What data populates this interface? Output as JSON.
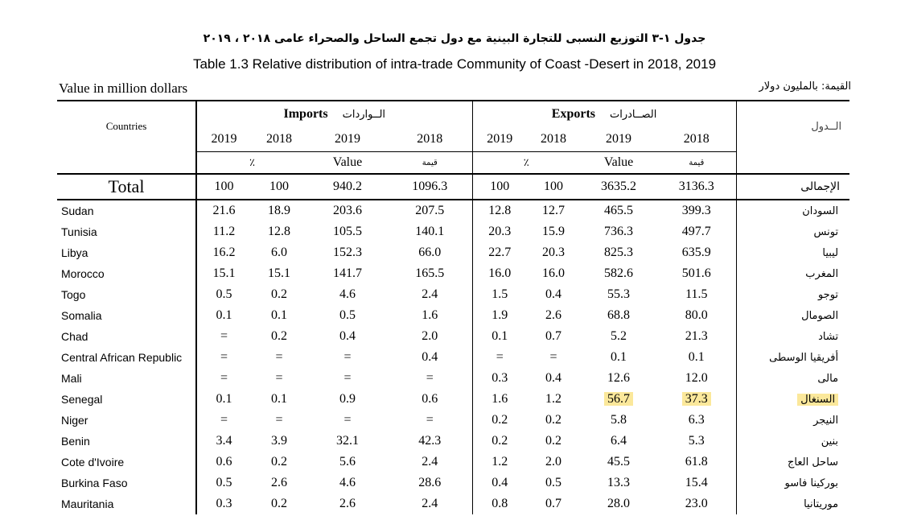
{
  "title_ar": "جدول ١-٣ التوزيع النسبى للتجارة البينية مع دول تجمع الساحل والصحراء عامى ٢٠١٨ ، ٢٠١٩",
  "title_en": "Table 1.3 Relative distribution of intra-trade Community of Coast -Desert in 2018, 2019",
  "unit_en": "Value in million dollars",
  "unit_ar": "القيمة: بالمليون دولار",
  "header": {
    "countries_label": "Countries",
    "countries_label_ar": "الــدول",
    "imports_en": "Imports",
    "imports_ar": "الــواردات",
    "exports_en": "Exports",
    "exports_ar": "الصــادرات",
    "years": [
      "2019",
      "2018",
      "2019",
      "2018"
    ],
    "percent_label": "٪",
    "value_label": "Value",
    "value_label_ar": "قيمة"
  },
  "total": {
    "label_en": "Total",
    "label_ar": "الإجمالى",
    "values": [
      "100",
      "100",
      "940.2",
      "1096.3",
      "100",
      "100",
      "3635.2",
      "3136.3"
    ]
  },
  "rows": [
    {
      "en": "Sudan",
      "ar": "السودان",
      "v": [
        "21.6",
        "18.9",
        "203.6",
        "207.5",
        "12.8",
        "12.7",
        "465.5",
        "399.3"
      ]
    },
    {
      "en": "Tunisia",
      "ar": "تونس",
      "v": [
        "11.2",
        "12.8",
        "105.5",
        "140.1",
        "20.3",
        "15.9",
        "736.3",
        "497.7"
      ]
    },
    {
      "en": "Libya",
      "ar": "ليبيا",
      "v": [
        "16.2",
        "6.0",
        "152.3",
        "66.0",
        "22.7",
        "20.3",
        "825.3",
        "635.9"
      ]
    },
    {
      "en": "Morocco",
      "ar": "المغرب",
      "v": [
        "15.1",
        "15.1",
        "141.7",
        "165.5",
        "16.0",
        "16.0",
        "582.6",
        "501.6"
      ]
    },
    {
      "en": "Togo",
      "ar": "توجو",
      "v": [
        "0.5",
        "0.2",
        "4.6",
        "2.4",
        "1.5",
        "0.4",
        "55.3",
        "11.5"
      ]
    },
    {
      "en": "Somalia",
      "ar": "الصومال",
      "v": [
        "0.1",
        "0.1",
        "0.5",
        "1.6",
        "1.9",
        "2.6",
        "68.8",
        "80.0"
      ]
    },
    {
      "en": "Chad",
      "ar": "تشاد",
      "v": [
        "=",
        "0.2",
        "0.4",
        "2.0",
        "0.1",
        "0.7",
        "5.2",
        "21.3"
      ]
    },
    {
      "en": "Central African Republic",
      "ar": "أفريقيا الوسطى",
      "v": [
        "=",
        "=",
        "=",
        "0.4",
        "=",
        "=",
        "0.1",
        "0.1"
      ]
    },
    {
      "en": "Mali",
      "ar": "مالى",
      "v": [
        "=",
        "=",
        "=",
        "=",
        "0.3",
        "0.4",
        "12.6",
        "12.0"
      ]
    },
    {
      "en": "Senegal",
      "ar": "السنغال",
      "v": [
        "0.1",
        "0.1",
        "0.9",
        "0.6",
        "1.6",
        "1.2",
        "56.7",
        "37.3"
      ]
    },
    {
      "en": "Niger",
      "ar": "النيجر",
      "v": [
        "=",
        "=",
        "=",
        "=",
        "0.2",
        "0.2",
        "5.8",
        "6.3"
      ]
    },
    {
      "en": "Benin",
      "ar": "بنين",
      "v": [
        "3.4",
        "3.9",
        "32.1",
        "42.3",
        "0.2",
        "0.2",
        "6.4",
        "5.3"
      ]
    },
    {
      "en": "Cote d'Ivoire",
      "ar": "ساحل العاج",
      "v": [
        "0.6",
        "0.2",
        "5.6",
        "2.4",
        "1.2",
        "2.0",
        "45.5",
        "61.8"
      ]
    },
    {
      "en": "Burkina Faso",
      "ar": "بوركينا فاسو",
      "v": [
        "0.5",
        "2.6",
        "4.6",
        "28.6",
        "0.4",
        "0.5",
        "13.3",
        "15.4"
      ]
    },
    {
      "en": "Mauritania",
      "ar": "موريتانيا",
      "v": [
        "0.3",
        "0.2",
        "2.6",
        "2.4",
        "0.8",
        "0.7",
        "28.0",
        "23.0"
      ]
    }
  ],
  "highlight_color": "#fbe89b"
}
